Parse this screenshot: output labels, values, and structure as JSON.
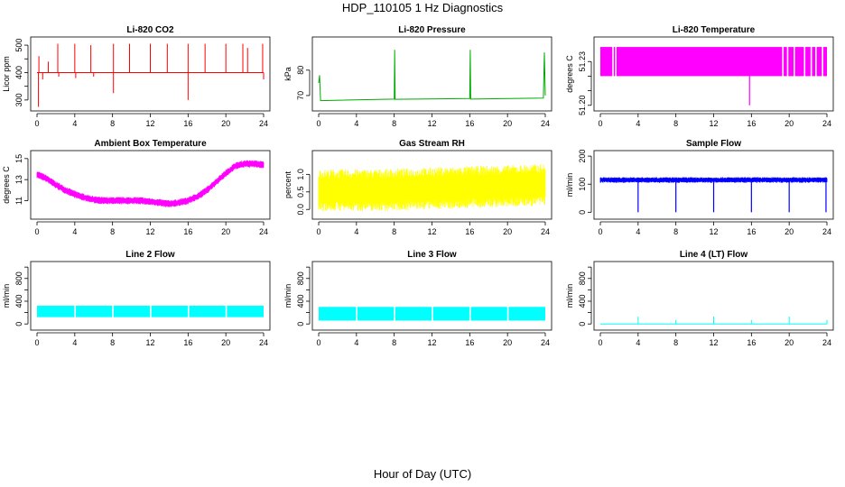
{
  "title": "HDP_110105  1 Hz Diagnostics",
  "x_axis_caption": "Hour of Day (UTC)",
  "chart_data": [
    {
      "type": "line",
      "title": "Li-820 CO2",
      "ylabel": "Licor ppm",
      "color": "#ff0000",
      "xlim": [
        0,
        24
      ],
      "ylim": [
        270,
        520
      ],
      "xticks": [
        0,
        4,
        8,
        12,
        16,
        20,
        24
      ],
      "yticks": [
        300,
        350,
        400,
        450,
        500
      ],
      "yticklabels": [
        "300",
        "",
        "400",
        "",
        "500"
      ],
      "series": [
        {
          "name": "baseline",
          "x": [
            0,
            24
          ],
          "y": [
            400,
            400
          ]
        }
      ],
      "spikes_up": [
        {
          "x": 0.2,
          "y": 460
        },
        {
          "x": 1.2,
          "y": 440
        },
        {
          "x": 2.2,
          "y": 505
        },
        {
          "x": 4,
          "y": 505
        },
        {
          "x": 5.7,
          "y": 500
        },
        {
          "x": 8.1,
          "y": 505
        },
        {
          "x": 9.8,
          "y": 505
        },
        {
          "x": 12,
          "y": 505
        },
        {
          "x": 13.8,
          "y": 505
        },
        {
          "x": 16,
          "y": 505
        },
        {
          "x": 17.8,
          "y": 505
        },
        {
          "x": 20,
          "y": 505
        },
        {
          "x": 21.8,
          "y": 505
        },
        {
          "x": 22.3,
          "y": 490
        },
        {
          "x": 23.9,
          "y": 505
        }
      ],
      "spikes_down": [
        {
          "x": 0.15,
          "y": 275
        },
        {
          "x": 8.1,
          "y": 325
        },
        {
          "x": 16,
          "y": 300
        },
        {
          "x": 0.6,
          "y": 375
        },
        {
          "x": 2.3,
          "y": 385
        },
        {
          "x": 4.1,
          "y": 380
        },
        {
          "x": 6,
          "y": 385
        },
        {
          "x": 24,
          "y": 375
        }
      ]
    },
    {
      "type": "line",
      "title": "Li-820 Pressure",
      "ylabel": "kPa",
      "color": "#00aa00",
      "xlim": [
        0,
        24
      ],
      "ylim": [
        65,
        92
      ],
      "xticks": [
        0,
        4,
        8,
        12,
        16,
        20,
        24
      ],
      "yticks": [
        70,
        80
      ],
      "yticklabels": [
        "70",
        "80"
      ],
      "series": [
        {
          "name": "pressure",
          "x": [
            0,
            0.1,
            0.2,
            8,
            8.05,
            8.1,
            16,
            16.05,
            16.1,
            23.8,
            23.9,
            24
          ],
          "y": [
            75,
            78,
            68,
            68.6,
            88,
            68.5,
            68.8,
            88,
            68.6,
            69,
            87,
            70
          ]
        }
      ]
    },
    {
      "type": "line",
      "title": "Li-820 Temperature",
      "ylabel": "degrees C",
      "color": "#ff00ff",
      "xlim": [
        0,
        24
      ],
      "ylim": [
        51.198,
        51.245
      ],
      "xticks": [
        0,
        4,
        8,
        12,
        16,
        20,
        24
      ],
      "yticks": [
        51.2,
        51.21,
        51.22,
        51.23
      ],
      "yticklabels": [
        "51.20",
        "",
        "",
        "51.23"
      ],
      "bands": {
        "low": 51.22,
        "high": 51.24,
        "gaps": [
          1.3,
          1.6,
          19.3,
          19.8,
          20.5,
          21.6,
          22.3,
          22.8,
          23.5
        ]
      },
      "dips": [
        {
          "x": 15.8,
          "y": 51.2
        }
      ]
    },
    {
      "type": "line",
      "title": "Ambient Box Temperature",
      "ylabel": "degrees C",
      "color": "#ff00ff",
      "xlim": [
        0,
        24
      ],
      "ylim": [
        9.5,
        15.5
      ],
      "xticks": [
        0,
        4,
        8,
        12,
        16,
        20,
        24
      ],
      "yticks": [
        11,
        13,
        15
      ],
      "yticklabels": [
        "11",
        "13",
        "15"
      ],
      "series": [
        {
          "name": "temperature",
          "x": [
            0,
            1,
            2,
            3,
            4,
            5,
            6,
            7,
            8,
            9,
            10,
            11,
            12,
            13,
            14,
            15,
            16,
            17,
            18,
            19,
            20,
            21,
            22,
            23,
            24
          ],
          "y": [
            13.5,
            13.1,
            12.5,
            12,
            11.6,
            11.3,
            11.1,
            11,
            11,
            11,
            11,
            11,
            10.9,
            10.8,
            10.7,
            10.8,
            11,
            11.4,
            12,
            12.8,
            13.6,
            14.3,
            14.5,
            14.5,
            14.4
          ],
          "band": 0.35
        }
      ]
    },
    {
      "type": "line",
      "title": "Gas Stream RH",
      "ylabel": "percent",
      "color": "#ffff00",
      "xlim": [
        0,
        24
      ],
      "ylim": [
        -0.2,
        1.6
      ],
      "xticks": [
        0,
        4,
        8,
        12,
        16,
        20,
        24
      ],
      "yticks": [
        0,
        0.5,
        1
      ],
      "yticklabels": [
        "0.0",
        "0.5",
        "1.0"
      ],
      "series": [
        {
          "name": "rh",
          "x": [
            0,
            6,
            12,
            18,
            24
          ],
          "y": [
            0.55,
            0.55,
            0.6,
            0.65,
            0.7
          ],
          "band": 0.6
        }
      ]
    },
    {
      "type": "line",
      "title": "Sample Flow",
      "ylabel": "ml/min",
      "color": "#0000ff",
      "xlim": [
        0,
        24
      ],
      "ylim": [
        -15,
        210
      ],
      "xticks": [
        0,
        4,
        8,
        12,
        16,
        20,
        24
      ],
      "yticks": [
        0,
        100,
        200
      ],
      "yticklabels": [
        "0",
        "100",
        "200"
      ],
      "series": [
        {
          "name": "flow",
          "x": [
            0,
            24
          ],
          "y": [
            115,
            115
          ],
          "band": 10
        }
      ],
      "dips": [
        {
          "x": 4,
          "y": 0
        },
        {
          "x": 8,
          "y": 0
        },
        {
          "x": 12,
          "y": 0
        },
        {
          "x": 16,
          "y": 0
        },
        {
          "x": 20,
          "y": 0
        },
        {
          "x": 23.9,
          "y": 0
        }
      ]
    },
    {
      "type": "line",
      "title": "Line 2 Flow",
      "ylabel": "ml/min",
      "color": "#00ffff",
      "xlim": [
        0,
        24
      ],
      "ylim": [
        -60,
        1050
      ],
      "xticks": [
        0,
        4,
        8,
        12,
        16,
        20,
        24
      ],
      "yticks": [
        0,
        200,
        400,
        600,
        800,
        1000
      ],
      "yticklabels": [
        "0",
        "",
        "400",
        "",
        "800",
        ""
      ],
      "bands": {
        "low": 120,
        "high": 320,
        "gaps": [
          4,
          8,
          12,
          16,
          20
        ]
      }
    },
    {
      "type": "line",
      "title": "Line 3 Flow",
      "ylabel": "ml/min",
      "color": "#00ffff",
      "xlim": [
        0,
        24
      ],
      "ylim": [
        -60,
        1050
      ],
      "xticks": [
        0,
        4,
        8,
        12,
        16,
        20,
        24
      ],
      "yticks": [
        0,
        200,
        400,
        600,
        800,
        1000
      ],
      "yticklabels": [
        "0",
        "",
        "400",
        "",
        "800",
        ""
      ],
      "bands": {
        "low": 60,
        "high": 300,
        "gaps": [
          4,
          8,
          12,
          16,
          20
        ]
      }
    },
    {
      "type": "line",
      "title": "Line 4 (LT) Flow",
      "ylabel": "ml/min",
      "color": "#00ffff",
      "xlim": [
        0,
        24
      ],
      "ylim": [
        -60,
        1050
      ],
      "xticks": [
        0,
        4,
        8,
        12,
        16,
        20,
        24
      ],
      "yticks": [
        0,
        200,
        400,
        600,
        800,
        1000
      ],
      "yticklabels": [
        "0",
        "",
        "400",
        "",
        "800",
        ""
      ],
      "series": [
        {
          "name": "flow",
          "x": [
            0,
            24
          ],
          "y": [
            0,
            0
          ]
        }
      ],
      "spikes_up": [
        {
          "x": 4,
          "y": 130
        },
        {
          "x": 8,
          "y": 70
        },
        {
          "x": 12,
          "y": 130
        },
        {
          "x": 16,
          "y": 70
        },
        {
          "x": 20,
          "y": 130
        },
        {
          "x": 24,
          "y": 70
        }
      ]
    }
  ]
}
